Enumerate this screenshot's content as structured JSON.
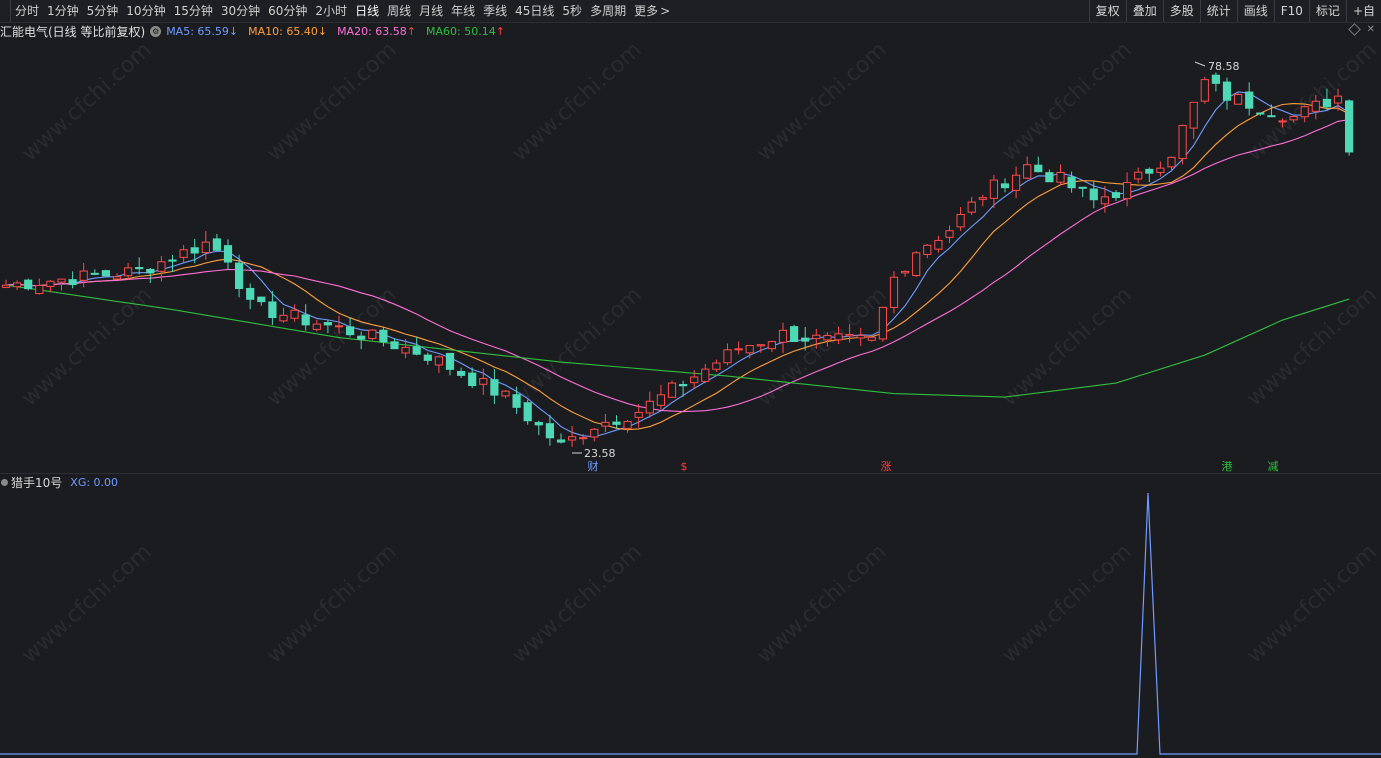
{
  "toolbar": {
    "periods": [
      {
        "label": "分时",
        "active": false
      },
      {
        "label": "1分钟",
        "active": false
      },
      {
        "label": "5分钟",
        "active": false
      },
      {
        "label": "10分钟",
        "active": false
      },
      {
        "label": "15分钟",
        "active": false
      },
      {
        "label": "30分钟",
        "active": false
      },
      {
        "label": "60分钟",
        "active": false
      },
      {
        "label": "2小时",
        "active": false
      },
      {
        "label": "日线",
        "active": true
      },
      {
        "label": "周线",
        "active": false
      },
      {
        "label": "月线",
        "active": false
      },
      {
        "label": "年线",
        "active": false
      },
      {
        "label": "季线",
        "active": false
      },
      {
        "label": "45日线",
        "active": false
      },
      {
        "label": "5秒",
        "active": false
      },
      {
        "label": "多周期",
        "active": false
      },
      {
        "label": "更多",
        "active": false
      }
    ],
    "more_arrow": ">",
    "tools": [
      "复权",
      "叠加",
      "多股",
      "统计",
      "画线",
      "F10",
      "标记",
      "+自"
    ]
  },
  "legend": {
    "stock_name": "汇能电气(日线 等比前复权)",
    "ma": [
      {
        "label": "MA5: 65.59",
        "arrow": "↓",
        "color": "#6f9cff"
      },
      {
        "label": "MA10: 65.40",
        "arrow": "↓",
        "color": "#ff9f3b"
      },
      {
        "label": "MA20: 63.58",
        "arrow": "↑",
        "color": "#ff6fd8"
      },
      {
        "label": "MA60: 50.14",
        "arrow": "↑",
        "color": "#2fbf3f"
      }
    ]
  },
  "annotations": {
    "high_label": "78.58",
    "low_label": "23.58",
    "markers": [
      {
        "text": "财",
        "color": "#6f9cff"
      },
      {
        "text": "$",
        "color": "#ff3b3b"
      },
      {
        "text": "涨",
        "color": "#ff3b3b"
      },
      {
        "text": "港",
        "color": "#2fbf3f"
      },
      {
        "text": "减",
        "color": "#2fbf3f"
      }
    ]
  },
  "indicator": {
    "name": "猎手10号",
    "value_label": "XG: 0.00"
  },
  "watermark": "www.cfchi.com",
  "colors": {
    "background": "#1b1c20",
    "up": "#ff4a4a",
    "down": "#4fd8b5",
    "ma5": "#6f9cff",
    "ma10": "#ff9f3b",
    "ma20": "#ff6fd8",
    "ma60": "#2fbf3f",
    "indicator": "#6f9cff"
  }
}
